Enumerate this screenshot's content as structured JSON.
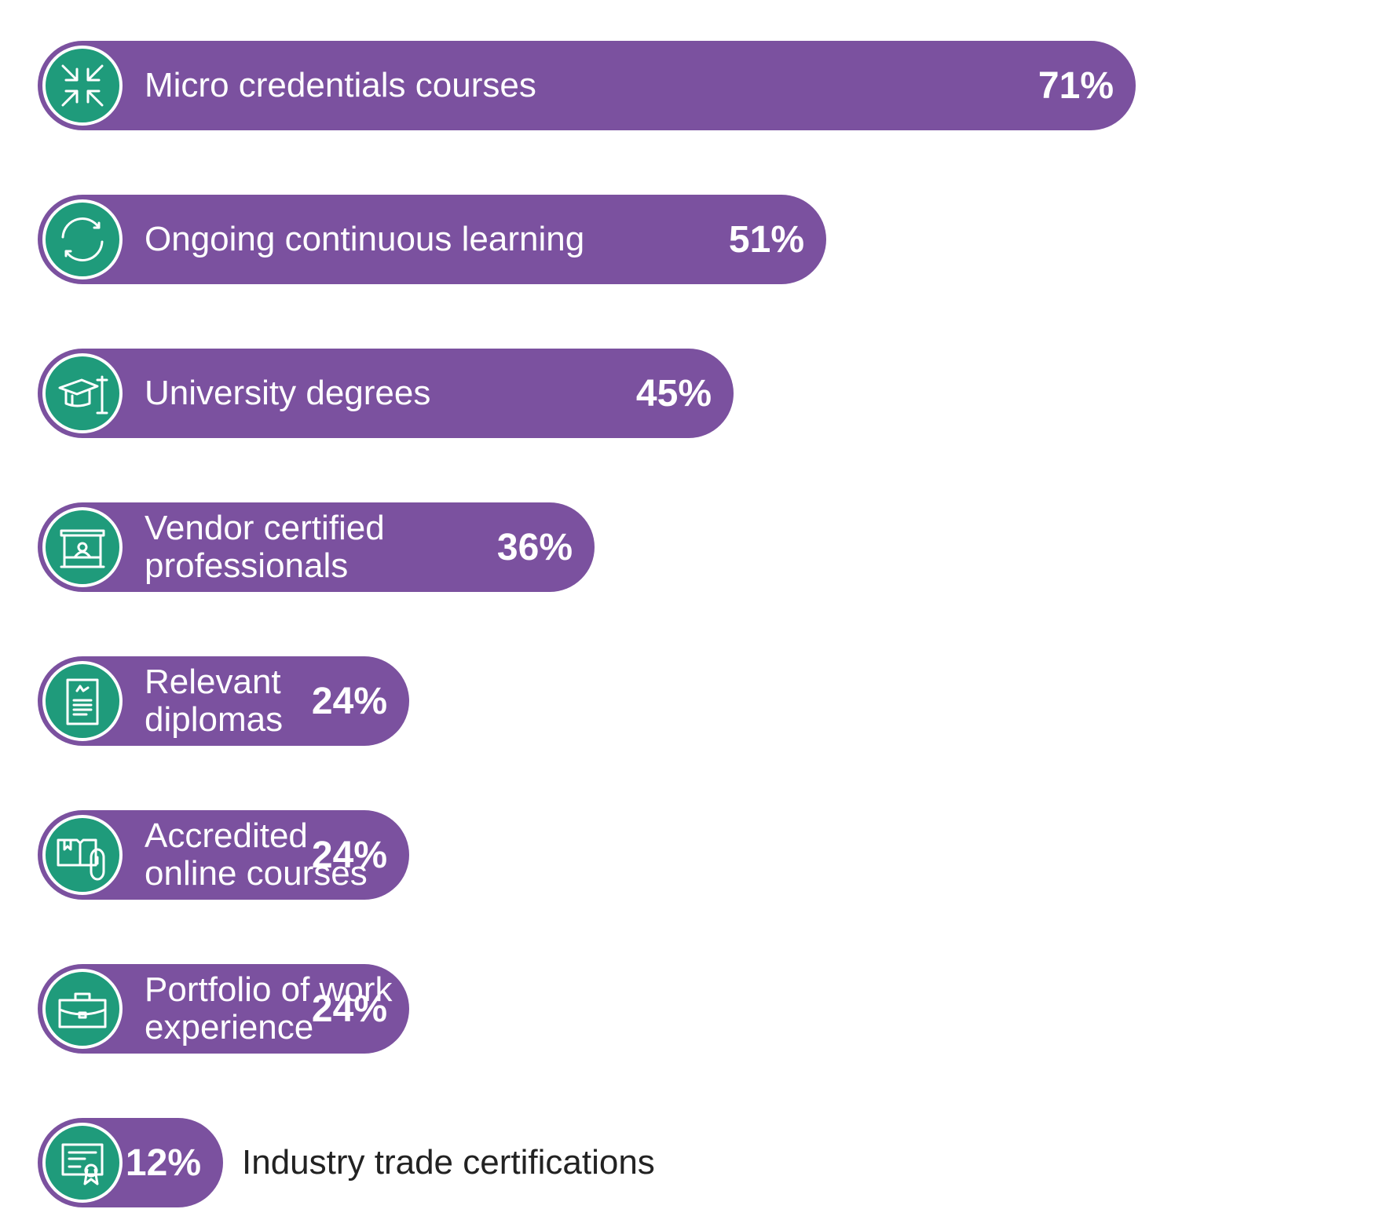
{
  "chart_data": {
    "type": "bar",
    "orientation": "horizontal",
    "unit": "%",
    "colors": {
      "bar": "#7b519f",
      "icon": "#1f9b7b",
      "text": "#ffffff",
      "outside_text": "#222222"
    },
    "items": [
      {
        "label": "Micro credentials courses",
        "value": 71,
        "value_label": "71%",
        "icon": "compress-arrows-icon"
      },
      {
        "label": "Ongoing continuous learning",
        "value": 51,
        "value_label": "51%",
        "icon": "refresh-cycle-icon"
      },
      {
        "label": "University degrees",
        "value": 45,
        "value_label": "45%",
        "icon": "graduation-cap-icon"
      },
      {
        "label": "Vendor certified professionals",
        "value": 36,
        "value_label": "36%",
        "icon": "vendor-booth-icon"
      },
      {
        "label": "Relevant diplomas",
        "value": 24,
        "value_label": "24%",
        "icon": "diploma-document-icon"
      },
      {
        "label": "Accredited\nonline courses",
        "value": 24,
        "value_label": "24%",
        "icon": "book-mouse-icon"
      },
      {
        "label": "Portfolio of work\nexperience",
        "value": 24,
        "value_label": "24%",
        "icon": "briefcase-icon"
      },
      {
        "label": "Industry trade certifications",
        "value": 12,
        "value_label": "12%",
        "icon": "certificate-ribbon-icon",
        "label_outside": true
      }
    ]
  }
}
